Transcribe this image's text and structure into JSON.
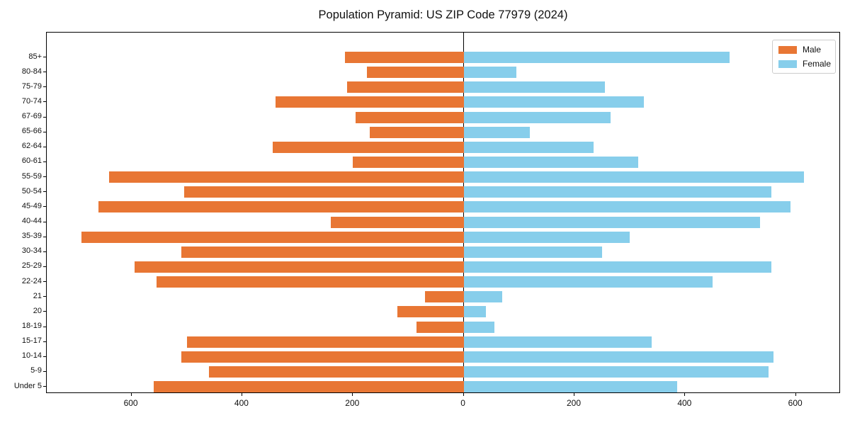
{
  "title": "Population Pyramid: US ZIP Code 77979 (2024)",
  "legend": {
    "male_label": "Male",
    "female_label": "Female",
    "position": "upper right"
  },
  "colors": {
    "male": "#e87634",
    "female": "#87ceeb",
    "axis": "#000000",
    "legend_border": "#cccccc"
  },
  "chart_data": {
    "type": "bar",
    "orientation": "horizontal population pyramid (male left, female right)",
    "title": "Population Pyramid: US ZIP Code 77979 (2024)",
    "categories": [
      "85+",
      "80-84",
      "75-79",
      "70-74",
      "67-69",
      "65-66",
      "62-64",
      "60-61",
      "55-59",
      "50-54",
      "45-49",
      "40-44",
      "35-39",
      "30-34",
      "25-29",
      "22-24",
      "21",
      "20",
      "18-19",
      "15-17",
      "10-14",
      "5-9",
      "Under 5"
    ],
    "series": [
      {
        "name": "Male",
        "side": "left",
        "color": "#e87634",
        "values": [
          215,
          175,
          210,
          340,
          195,
          170,
          345,
          200,
          640,
          505,
          660,
          240,
          690,
          510,
          595,
          555,
          70,
          120,
          85,
          500,
          510,
          460,
          560
        ]
      },
      {
        "name": "Female",
        "side": "right",
        "color": "#87ceeb",
        "values": [
          480,
          95,
          255,
          325,
          265,
          120,
          235,
          315,
          615,
          555,
          590,
          535,
          300,
          250,
          555,
          450,
          70,
          40,
          55,
          340,
          560,
          550,
          385
        ]
      }
    ],
    "x_ticks": {
      "values": [
        -600,
        -400,
        -200,
        0,
        200,
        400,
        600
      ],
      "labels": [
        "600",
        "400",
        "200",
        "0",
        "200",
        "400",
        "600"
      ]
    },
    "xlim": [
      -753,
      681
    ],
    "grid": false,
    "zero_axis_line": true,
    "legend_position": "upper right"
  }
}
